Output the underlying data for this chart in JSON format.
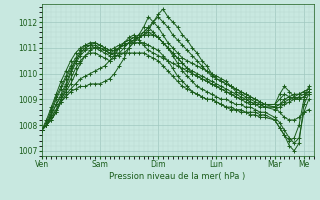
{
  "bg_color": "#c8e8e0",
  "plot_bg_color": "#c8e8e0",
  "grid_major_color": "#a0c8c0",
  "grid_minor_color": "#b8d8d0",
  "line_color": "#1a5c1a",
  "xlabel": "Pression niveau de la mer( hPa )",
  "ylim": [
    1006.8,
    1012.7
  ],
  "yticks": [
    1007,
    1008,
    1009,
    1010,
    1011,
    1012
  ],
  "xtick_labels": [
    "Ven",
    "Sam",
    "Dim",
    "Lun",
    "Mar",
    "Me"
  ],
  "xtick_positions": [
    0,
    24,
    48,
    72,
    96,
    108
  ],
  "total_hours": 112,
  "series": [
    {
      "x": [
        0,
        2,
        4,
        6,
        8,
        10,
        12,
        14,
        16,
        18,
        20,
        22,
        24,
        26,
        28,
        30,
        32,
        34,
        36,
        38,
        40,
        42,
        44,
        46,
        48,
        50,
        52,
        54,
        56,
        58,
        60,
        62,
        64,
        66,
        68,
        70,
        72,
        74,
        76,
        78,
        80,
        82,
        84,
        86,
        88,
        90,
        92,
        96,
        98,
        100,
        102,
        104,
        106,
        108,
        110
      ],
      "y": [
        1007.8,
        1008.0,
        1008.2,
        1008.5,
        1008.9,
        1009.1,
        1009.3,
        1009.4,
        1009.5,
        1009.5,
        1009.6,
        1009.6,
        1009.6,
        1009.7,
        1009.8,
        1010.0,
        1010.3,
        1010.6,
        1011.0,
        1011.3,
        1011.5,
        1011.8,
        1012.2,
        1012.0,
        1011.8,
        1011.5,
        1011.2,
        1011.0,
        1010.8,
        1010.6,
        1010.5,
        1010.4,
        1010.3,
        1010.2,
        1010.1,
        1010.0,
        1009.9,
        1009.8,
        1009.7,
        1009.5,
        1009.3,
        1009.2,
        1009.1,
        1009.0,
        1008.9,
        1008.8,
        1008.8,
        1008.8,
        1009.2,
        1009.5,
        1009.3,
        1009.1,
        1009.0,
        1009.1,
        1009.3
      ]
    },
    {
      "x": [
        0,
        2,
        4,
        6,
        8,
        10,
        12,
        14,
        16,
        18,
        20,
        22,
        24,
        26,
        28,
        30,
        32,
        34,
        36,
        38,
        40,
        42,
        44,
        46,
        48,
        50,
        52,
        54,
        56,
        58,
        60,
        62,
        64,
        66,
        68,
        70,
        72,
        74,
        76,
        78,
        80,
        82,
        84,
        86,
        88,
        90,
        92,
        96,
        98,
        100,
        102,
        104,
        106,
        108,
        110
      ],
      "y": [
        1007.8,
        1008.0,
        1008.2,
        1008.5,
        1008.9,
        1009.2,
        1009.4,
        1009.6,
        1009.8,
        1009.9,
        1010.0,
        1010.1,
        1010.2,
        1010.3,
        1010.5,
        1010.7,
        1011.0,
        1011.2,
        1011.4,
        1011.5,
        1011.3,
        1011.1,
        1010.9,
        1010.8,
        1010.7,
        1010.6,
        1010.5,
        1010.4,
        1010.3,
        1010.2,
        1010.1,
        1010.0,
        1009.9,
        1009.8,
        1009.7,
        1009.6,
        1009.5,
        1009.4,
        1009.3,
        1009.2,
        1009.1,
        1009.0,
        1009.0,
        1008.9,
        1008.8,
        1008.8,
        1008.7,
        1008.7,
        1008.8,
        1009.0,
        1009.1,
        1009.2,
        1009.2,
        1009.3,
        1009.4
      ]
    },
    {
      "x": [
        0,
        2,
        4,
        6,
        8,
        10,
        12,
        14,
        16,
        18,
        20,
        22,
        24,
        26,
        28,
        30,
        32,
        34,
        36,
        38,
        40,
        42,
        44,
        46,
        48,
        50,
        52,
        54,
        56,
        58,
        60,
        62,
        64,
        66,
        68,
        70,
        72,
        74,
        76,
        78,
        80,
        82,
        84,
        86,
        88,
        90,
        92,
        96,
        98,
        100,
        102,
        104,
        106,
        108,
        110
      ],
      "y": [
        1007.8,
        1008.0,
        1008.3,
        1008.6,
        1009.0,
        1009.3,
        1009.6,
        1010.0,
        1010.4,
        1010.7,
        1010.9,
        1011.0,
        1011.0,
        1010.9,
        1010.8,
        1010.7,
        1010.7,
        1010.8,
        1011.0,
        1011.2,
        1011.4,
        1011.6,
        1011.8,
        1011.6,
        1011.4,
        1011.2,
        1011.0,
        1010.8,
        1010.6,
        1010.4,
        1010.2,
        1010.0,
        1009.9,
        1009.8,
        1009.7,
        1009.6,
        1009.5,
        1009.4,
        1009.3,
        1009.2,
        1009.1,
        1009.0,
        1008.9,
        1008.8,
        1008.8,
        1008.7,
        1008.7,
        1008.6,
        1008.7,
        1008.8,
        1008.9,
        1009.0,
        1009.1,
        1009.2,
        1009.3
      ]
    },
    {
      "x": [
        0,
        2,
        4,
        6,
        8,
        10,
        12,
        14,
        16,
        18,
        20,
        22,
        24,
        26,
        28,
        30,
        32,
        34,
        36,
        38,
        40,
        42,
        44,
        46,
        48,
        50,
        52,
        54,
        56,
        58,
        60,
        62,
        64,
        66,
        68,
        70,
        72,
        74,
        76,
        78,
        80,
        82,
        84,
        86,
        88,
        90,
        92,
        96,
        98,
        100,
        102,
        104,
        106,
        108,
        110
      ],
      "y": [
        1007.8,
        1008.0,
        1008.3,
        1008.6,
        1009.0,
        1009.4,
        1009.8,
        1010.2,
        1010.5,
        1010.7,
        1010.8,
        1010.8,
        1010.7,
        1010.6,
        1010.5,
        1010.6,
        1010.8,
        1011.0,
        1011.2,
        1011.3,
        1011.4,
        1011.5,
        1011.6,
        1011.5,
        1011.4,
        1011.2,
        1011.0,
        1010.8,
        1010.6,
        1010.4,
        1010.2,
        1010.1,
        1010.0,
        1009.9,
        1009.8,
        1009.7,
        1009.6,
        1009.5,
        1009.4,
        1009.3,
        1009.2,
        1009.1,
        1009.0,
        1008.9,
        1008.8,
        1008.8,
        1008.7,
        1008.7,
        1008.8,
        1008.9,
        1009.0,
        1009.1,
        1009.2,
        1009.3,
        1009.4
      ]
    },
    {
      "x": [
        0,
        2,
        4,
        6,
        8,
        10,
        12,
        14,
        16,
        18,
        20,
        22,
        24,
        26,
        28,
        30,
        32,
        34,
        36,
        38,
        40,
        42,
        44,
        46,
        48,
        50,
        52,
        54,
        56,
        58,
        60,
        62,
        64,
        66,
        68,
        70,
        72,
        74,
        76,
        78,
        80,
        82,
        84,
        86,
        88,
        90,
        92,
        96,
        98,
        100,
        102,
        104,
        106,
        108,
        110
      ],
      "y": [
        1007.8,
        1008.0,
        1008.4,
        1008.8,
        1009.1,
        1009.5,
        1010.0,
        1010.4,
        1010.7,
        1010.9,
        1011.0,
        1011.0,
        1010.9,
        1010.8,
        1010.7,
        1010.8,
        1011.0,
        1011.2,
        1011.3,
        1011.4,
        1011.5,
        1011.6,
        1011.8,
        1012.0,
        1012.2,
        1012.0,
        1011.8,
        1011.5,
        1011.3,
        1011.1,
        1010.9,
        1010.7,
        1010.5,
        1010.3,
        1010.1,
        1009.9,
        1009.8,
        1009.7,
        1009.6,
        1009.5,
        1009.4,
        1009.3,
        1009.2,
        1009.1,
        1009.0,
        1008.9,
        1008.8,
        1008.8,
        1009.0,
        1009.2,
        1009.1,
        1009.0,
        1009.0,
        1009.1,
        1009.2
      ]
    },
    {
      "x": [
        0,
        2,
        4,
        6,
        8,
        10,
        12,
        14,
        16,
        18,
        20,
        22,
        24,
        26,
        28,
        30,
        32,
        34,
        36,
        38,
        40,
        42,
        44,
        46,
        48,
        50,
        52,
        54,
        56,
        58,
        60,
        62,
        64,
        66,
        68,
        70,
        72,
        74,
        76,
        78,
        80,
        82,
        84,
        86,
        88,
        90,
        92,
        96,
        98,
        100,
        102,
        104,
        106,
        108,
        110
      ],
      "y": [
        1007.8,
        1008.0,
        1008.4,
        1008.8,
        1009.2,
        1009.6,
        1010.1,
        1010.5,
        1010.8,
        1011.0,
        1011.1,
        1011.1,
        1011.0,
        1010.9,
        1010.8,
        1010.9,
        1011.0,
        1011.1,
        1011.2,
        1011.3,
        1011.4,
        1011.5,
        1011.7,
        1012.0,
        1012.3,
        1012.5,
        1012.2,
        1012.0,
        1011.8,
        1011.5,
        1011.3,
        1011.0,
        1010.8,
        1010.5,
        1010.3,
        1010.0,
        1009.8,
        1009.7,
        1009.6,
        1009.5,
        1009.4,
        1009.3,
        1009.2,
        1009.1,
        1009.0,
        1008.9,
        1008.8,
        1008.7,
        1008.5,
        1008.3,
        1008.2,
        1008.2,
        1008.3,
        1008.5,
        1008.6
      ]
    },
    {
      "x": [
        0,
        2,
        4,
        6,
        8,
        10,
        12,
        14,
        16,
        18,
        20,
        22,
        24,
        26,
        28,
        30,
        32,
        34,
        36,
        38,
        40,
        42,
        44,
        46,
        48,
        50,
        52,
        54,
        56,
        58,
        60,
        62,
        64,
        66,
        68,
        70,
        72,
        74,
        76,
        78,
        80,
        82,
        84,
        86,
        88,
        90,
        92,
        96,
        98,
        100,
        102,
        104,
        106,
        108,
        110
      ],
      "y": [
        1007.8,
        1008.0,
        1008.5,
        1009.0,
        1009.4,
        1009.8,
        1010.2,
        1010.5,
        1010.8,
        1011.0,
        1011.1,
        1011.2,
        1011.1,
        1011.0,
        1010.9,
        1011.0,
        1011.1,
        1011.2,
        1011.3,
        1011.4,
        1011.4,
        1011.5,
        1011.5,
        1011.5,
        1011.4,
        1011.2,
        1011.0,
        1010.7,
        1010.4,
        1010.1,
        1009.9,
        1009.7,
        1009.5,
        1009.4,
        1009.3,
        1009.2,
        1009.1,
        1009.0,
        1009.0,
        1008.9,
        1008.8,
        1008.8,
        1008.7,
        1008.7,
        1008.6,
        1008.5,
        1008.5,
        1008.3,
        1008.1,
        1007.8,
        1007.5,
        1007.3,
        1007.5,
        1008.5,
        1009.0
      ]
    },
    {
      "x": [
        0,
        2,
        4,
        6,
        8,
        10,
        12,
        14,
        16,
        18,
        20,
        22,
        24,
        26,
        28,
        30,
        32,
        34,
        36,
        38,
        40,
        42,
        44,
        46,
        48,
        50,
        52,
        54,
        56,
        58,
        60,
        62,
        64,
        66,
        68,
        70,
        72,
        74,
        76,
        78,
        80,
        82,
        84,
        86,
        88,
        90,
        92,
        96,
        98,
        100,
        102,
        104,
        106,
        108,
        110
      ],
      "y": [
        1007.8,
        1008.1,
        1008.6,
        1009.1,
        1009.5,
        1009.9,
        1010.3,
        1010.6,
        1010.9,
        1011.1,
        1011.2,
        1011.2,
        1011.1,
        1011.0,
        1010.9,
        1010.9,
        1011.0,
        1011.1,
        1011.2,
        1011.2,
        1011.2,
        1011.2,
        1011.1,
        1011.0,
        1010.9,
        1010.7,
        1010.5,
        1010.2,
        1009.9,
        1009.7,
        1009.5,
        1009.3,
        1009.2,
        1009.1,
        1009.0,
        1009.0,
        1008.9,
        1008.8,
        1008.7,
        1008.7,
        1008.6,
        1008.6,
        1008.5,
        1008.5,
        1008.5,
        1008.4,
        1008.4,
        1008.2,
        1007.9,
        1007.6,
        1007.2,
        1007.0,
        1007.3,
        1008.8,
        1009.2
      ]
    },
    {
      "x": [
        0,
        2,
        4,
        6,
        8,
        10,
        12,
        14,
        16,
        18,
        20,
        22,
        24,
        26,
        28,
        30,
        32,
        34,
        36,
        38,
        40,
        42,
        44,
        46,
        48,
        50,
        52,
        54,
        56,
        58,
        60,
        62,
        64,
        66,
        68,
        70,
        72,
        74,
        76,
        78,
        80,
        82,
        84,
        86,
        88,
        90,
        92,
        96,
        98,
        100,
        102,
        104,
        106,
        108,
        110
      ],
      "y": [
        1007.8,
        1008.2,
        1008.7,
        1009.2,
        1009.7,
        1010.1,
        1010.5,
        1010.8,
        1011.0,
        1011.1,
        1011.1,
        1011.0,
        1011.0,
        1010.9,
        1010.8,
        1010.8,
        1010.8,
        1010.8,
        1010.8,
        1010.8,
        1010.8,
        1010.8,
        1010.7,
        1010.6,
        1010.5,
        1010.3,
        1010.1,
        1009.9,
        1009.7,
        1009.5,
        1009.4,
        1009.3,
        1009.2,
        1009.1,
        1009.0,
        1009.0,
        1008.9,
        1008.8,
        1008.7,
        1008.6,
        1008.6,
        1008.5,
        1008.5,
        1008.4,
        1008.4,
        1008.3,
        1008.3,
        1008.2,
        1007.9,
        1007.6,
        1007.4,
        1007.5,
        1008.0,
        1009.0,
        1009.5
      ]
    }
  ],
  "line_width": 0.7,
  "marker_size": 2.5
}
